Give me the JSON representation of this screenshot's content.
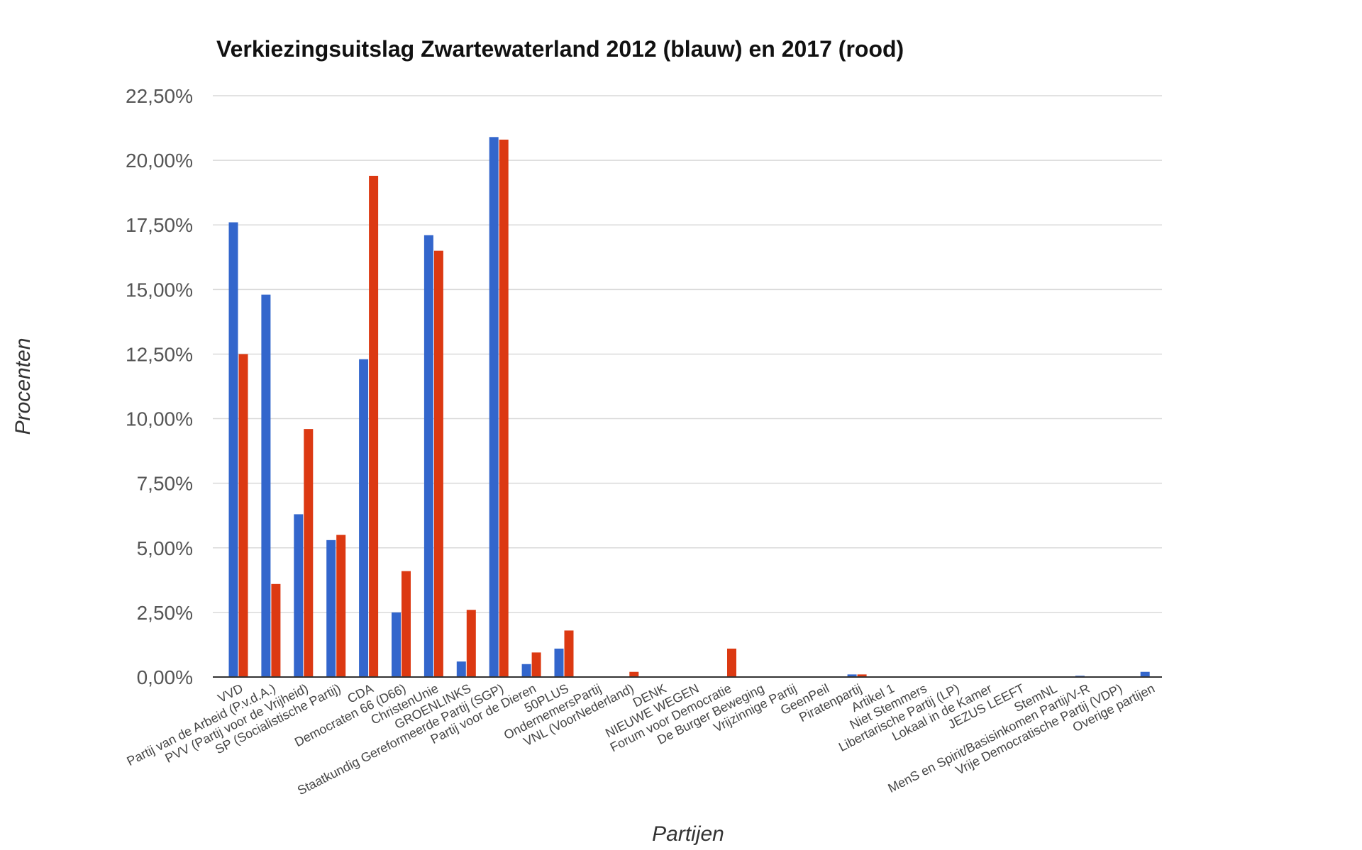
{
  "chart_data": {
    "type": "bar",
    "title": "Verkiezingsuitslag Zwartewaterland 2012 (blauw) en 2017 (rood)",
    "xlabel": "Partijen",
    "ylabel": "Procenten",
    "ylim": [
      0,
      22.5
    ],
    "yticks": [
      "0,00%",
      "2,50%",
      "5,00%",
      "7,50%",
      "10,00%",
      "12,50%",
      "15,00%",
      "17,50%",
      "20,00%",
      "22,50%"
    ],
    "grid": true,
    "legend": "none",
    "categories": [
      "VVD",
      "Partij van de Arbeid (P.v.d.A.)",
      "PVV (Partij voor de Vrijheid)",
      "SP (Socialistische Partij)",
      "CDA",
      "Democraten 66 (D66)",
      "ChristenUnie",
      "GROENLINKS",
      "Staatkundig Gereformeerde Partij (SGP)",
      "Partij voor de Dieren",
      "50PLUS",
      "OndernemersPartij",
      "VNL (VoorNederland)",
      "DENK",
      "NIEUWE WEGEN",
      "Forum voor Democratie",
      "De Burger Beweging",
      "Vrijzinnige Partij",
      "GeenPeil",
      "Piratenpartij",
      "Artikel 1",
      "Niet Stemmers",
      "Libertarische Partij (LP)",
      "Lokaal in de Kamer",
      "JEZUS LEEFT",
      "StemNL",
      "MenS en Spirit/Basisinkomen Partij/V-R",
      "Vrije Democratische Partij (VDP)",
      "Overige partijen"
    ],
    "series": [
      {
        "color": "#3366cc",
        "values": [
          17.6,
          14.8,
          6.3,
          5.3,
          12.3,
          2.5,
          17.1,
          0.6,
          20.9,
          0.5,
          1.1,
          0,
          0,
          0,
          0,
          0,
          0,
          0,
          0,
          0.1,
          0,
          0,
          0,
          0,
          0,
          0,
          0.05,
          0,
          0.2
        ]
      },
      {
        "color": "#dc3912",
        "values": [
          12.5,
          3.6,
          9.6,
          5.5,
          19.4,
          4.1,
          16.5,
          2.6,
          20.8,
          0.95,
          1.8,
          0,
          0.2,
          0,
          0,
          1.1,
          0,
          0,
          0,
          0.1,
          0,
          0,
          0,
          0,
          0,
          0,
          0,
          0,
          0
        ]
      }
    ]
  }
}
